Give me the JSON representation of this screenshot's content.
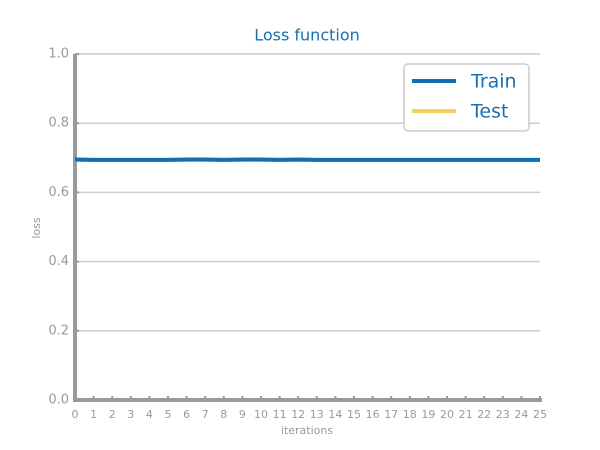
{
  "chart_data": {
    "type": "line",
    "title": "Loss function",
    "xlabel": "iterations",
    "ylabel": "loss",
    "x": [
      0,
      1,
      2,
      3,
      4,
      5,
      6,
      7,
      8,
      9,
      10,
      11,
      12,
      13,
      14,
      15,
      16,
      17,
      18,
      19,
      20,
      21,
      22,
      23,
      24,
      25
    ],
    "series": [
      {
        "name": "Train",
        "color": "#0f6eb4",
        "values": [
          0.695,
          0.694,
          0.694,
          0.694,
          0.694,
          0.694,
          0.695,
          0.695,
          0.694,
          0.695,
          0.695,
          0.694,
          0.695,
          0.694,
          0.694,
          0.694,
          0.694,
          0.694,
          0.694,
          0.694,
          0.694,
          0.694,
          0.694,
          0.694,
          0.694,
          0.694
        ]
      },
      {
        "name": "Test",
        "color": "#f0d060",
        "values": [
          0.694,
          0.694,
          0.694,
          0.694,
          0.694,
          0.694,
          0.694,
          0.694,
          0.694,
          0.694,
          0.694,
          0.694,
          0.694,
          0.694,
          0.694,
          0.694,
          0.694,
          0.694,
          0.694,
          0.694,
          0.694,
          0.694,
          0.694,
          0.694,
          0.694,
          0.694
        ]
      }
    ],
    "xlim": [
      0,
      25
    ],
    "xticks": [
      0,
      1,
      2,
      3,
      4,
      5,
      6,
      7,
      8,
      9,
      10,
      11,
      12,
      13,
      14,
      15,
      16,
      17,
      18,
      19,
      20,
      21,
      22,
      23,
      24,
      25
    ],
    "ylim": [
      0,
      1
    ],
    "yticks": [
      {
        "value": 0,
        "label": "0.0"
      },
      {
        "value": 0.2,
        "label": "0.2"
      },
      {
        "value": 0.4,
        "label": "0.4"
      },
      {
        "value": 0.6,
        "label": "0.6"
      },
      {
        "value": 0.8,
        "label": "0.8"
      },
      {
        "value": 1,
        "label": "1.0"
      }
    ],
    "grid": true,
    "legend": "upper right"
  }
}
